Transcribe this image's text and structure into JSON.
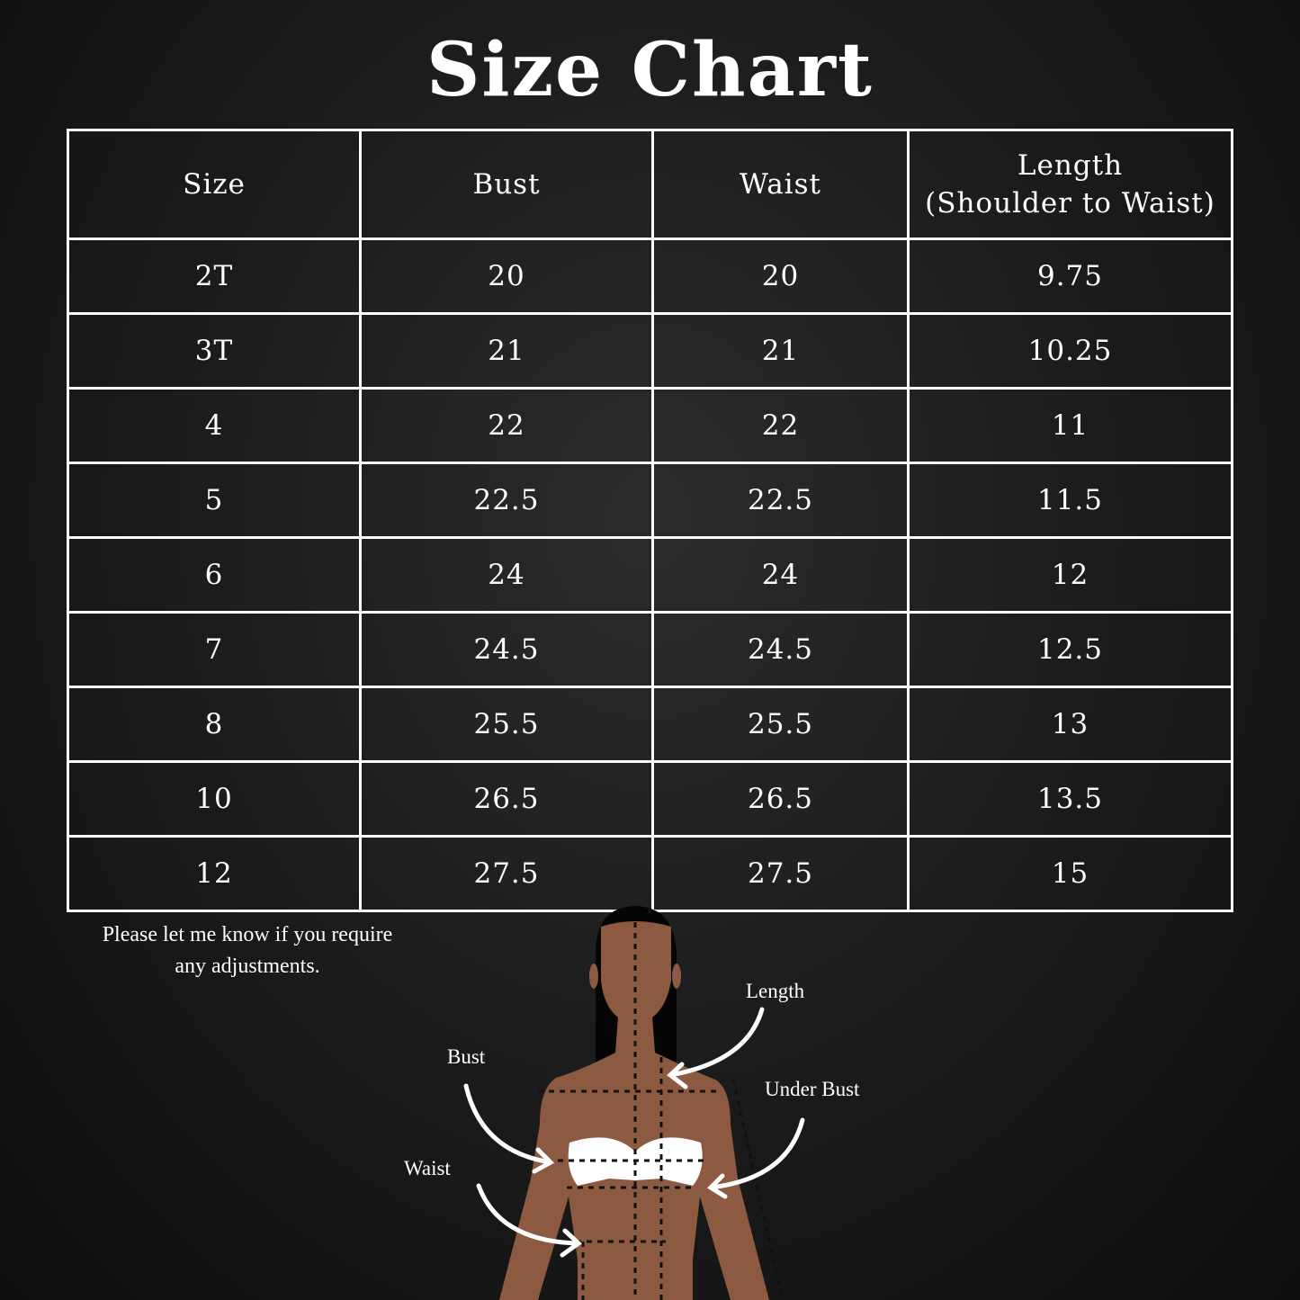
{
  "title": "Size Chart",
  "table": {
    "headers": [
      "Size",
      "Bust",
      "Waist",
      "Length",
      "(Shoulder to Waist)"
    ],
    "rows": [
      [
        "2T",
        "20",
        "20",
        "9.75"
      ],
      [
        "3T",
        "21",
        "21",
        "10.25"
      ],
      [
        "4",
        "22",
        "22",
        "11"
      ],
      [
        "5",
        "22.5",
        "22.5",
        "11.5"
      ],
      [
        "6",
        "24",
        "24",
        "12"
      ],
      [
        "7",
        "24.5",
        "24.5",
        "12.5"
      ],
      [
        "8",
        "25.5",
        "25.5",
        "13"
      ],
      [
        "10",
        "26.5",
        "26.5",
        "13.5"
      ],
      [
        "12",
        "27.5",
        "27.5",
        "15"
      ]
    ]
  },
  "note": [
    "Please let me know if you require",
    "any adjustments."
  ],
  "diagram": {
    "labels": {
      "length": "Length",
      "bust": "Bust",
      "under_bust": "Under Bust",
      "waist": "Waist"
    },
    "colors": {
      "skin": "#8c5a40",
      "hair": "#050505",
      "garment": "#ffffff"
    }
  }
}
